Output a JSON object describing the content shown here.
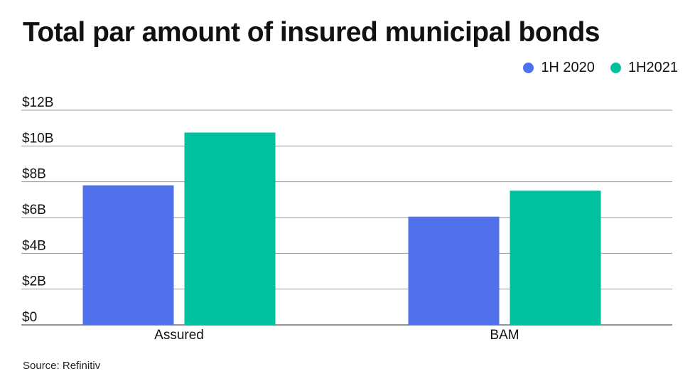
{
  "title": "Total par amount of insured municipal bonds",
  "source": "Source: Refinitiv",
  "colors": {
    "series_1": "#5170EB",
    "series_2": "#00C09E",
    "grid": "#9a9a9a",
    "axis": "#555555"
  },
  "chart_data": {
    "type": "bar",
    "title": "Total par amount of insured municipal bonds",
    "categories": [
      "Assured",
      "BAM"
    ],
    "series": [
      {
        "name": "1H 2020",
        "values": [
          7.8,
          6.05
        ]
      },
      {
        "name": "1H2021",
        "values": [
          10.75,
          7.5
        ]
      }
    ],
    "y_ticks": [
      0,
      2,
      4,
      6,
      8,
      10,
      12
    ],
    "y_tick_labels": [
      "$0",
      "$2B",
      "$4B",
      "$6B",
      "$8B",
      "$10B",
      "$12B"
    ],
    "ylim": [
      0,
      12
    ],
    "xlabel": "",
    "ylabel": "",
    "grid": true,
    "legend_position": "top-right"
  }
}
